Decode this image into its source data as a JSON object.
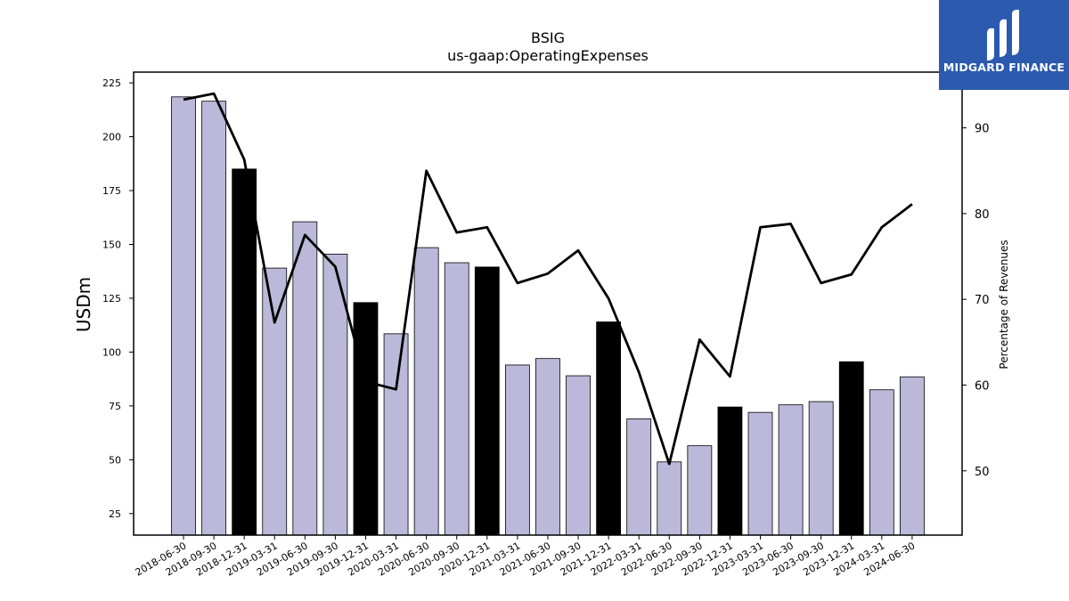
{
  "logo": {
    "text": "MIDGARD FINANCE",
    "icon": "midgard-logo-icon",
    "background": "#2b5aae"
  },
  "chart_data": {
    "type": "bar",
    "title": "BSIG",
    "subtitle": "us-gaap:OperatingExpenses",
    "ylabel": "USDm",
    "y2label": "Percentage of Revenues",
    "ylim": [
      15,
      230
    ],
    "y2lim": [
      42.5,
      96.5
    ],
    "yticks": [
      25,
      50,
      75,
      100,
      125,
      150,
      175,
      200,
      225
    ],
    "y2ticks": [
      50,
      60,
      70,
      80,
      90
    ],
    "categories": [
      "2018-06-30",
      "2018-09-30",
      "2018-12-31",
      "2019-03-31",
      "2019-06-30",
      "2019-09-30",
      "2019-12-31",
      "2020-03-31",
      "2020-06-30",
      "2020-09-30",
      "2020-12-31",
      "2021-03-31",
      "2021-06-30",
      "2021-09-30",
      "2021-12-31",
      "2022-03-31",
      "2022-06-30",
      "2022-09-30",
      "2022-12-31",
      "2023-03-31",
      "2023-06-30",
      "2023-09-30",
      "2023-12-31",
      "2024-03-31",
      "2024-06-30"
    ],
    "series": [
      {
        "type": "bar",
        "axis": "left",
        "values": [
          218.5,
          216.5,
          185,
          139,
          160.5,
          145.5,
          123,
          108.5,
          148.5,
          141.5,
          139.5,
          94,
          97,
          89,
          114,
          69,
          49,
          56.5,
          74.5,
          72,
          75.5,
          77,
          95.5,
          82.5,
          88.5
        ],
        "highlight": [
          false,
          false,
          true,
          false,
          false,
          false,
          true,
          false,
          false,
          false,
          true,
          false,
          false,
          false,
          true,
          false,
          false,
          false,
          true,
          false,
          false,
          false,
          true,
          false,
          false
        ]
      },
      {
        "type": "line",
        "axis": "right",
        "values": [
          93.3,
          94.0,
          86.3,
          67.3,
          77.5,
          73.8,
          60.4,
          59.5,
          85.0,
          77.8,
          78.4,
          71.9,
          73.0,
          75.7,
          70.1,
          61.5,
          50.8,
          65.3,
          61.0,
          78.4,
          78.8,
          71.9,
          72.9,
          78.4,
          81.1
        ]
      }
    ],
    "colors": {
      "bar": "#bcb8d9",
      "bar_highlight": "#000000",
      "line": "#000000"
    },
    "grid": false,
    "legend": "none"
  }
}
